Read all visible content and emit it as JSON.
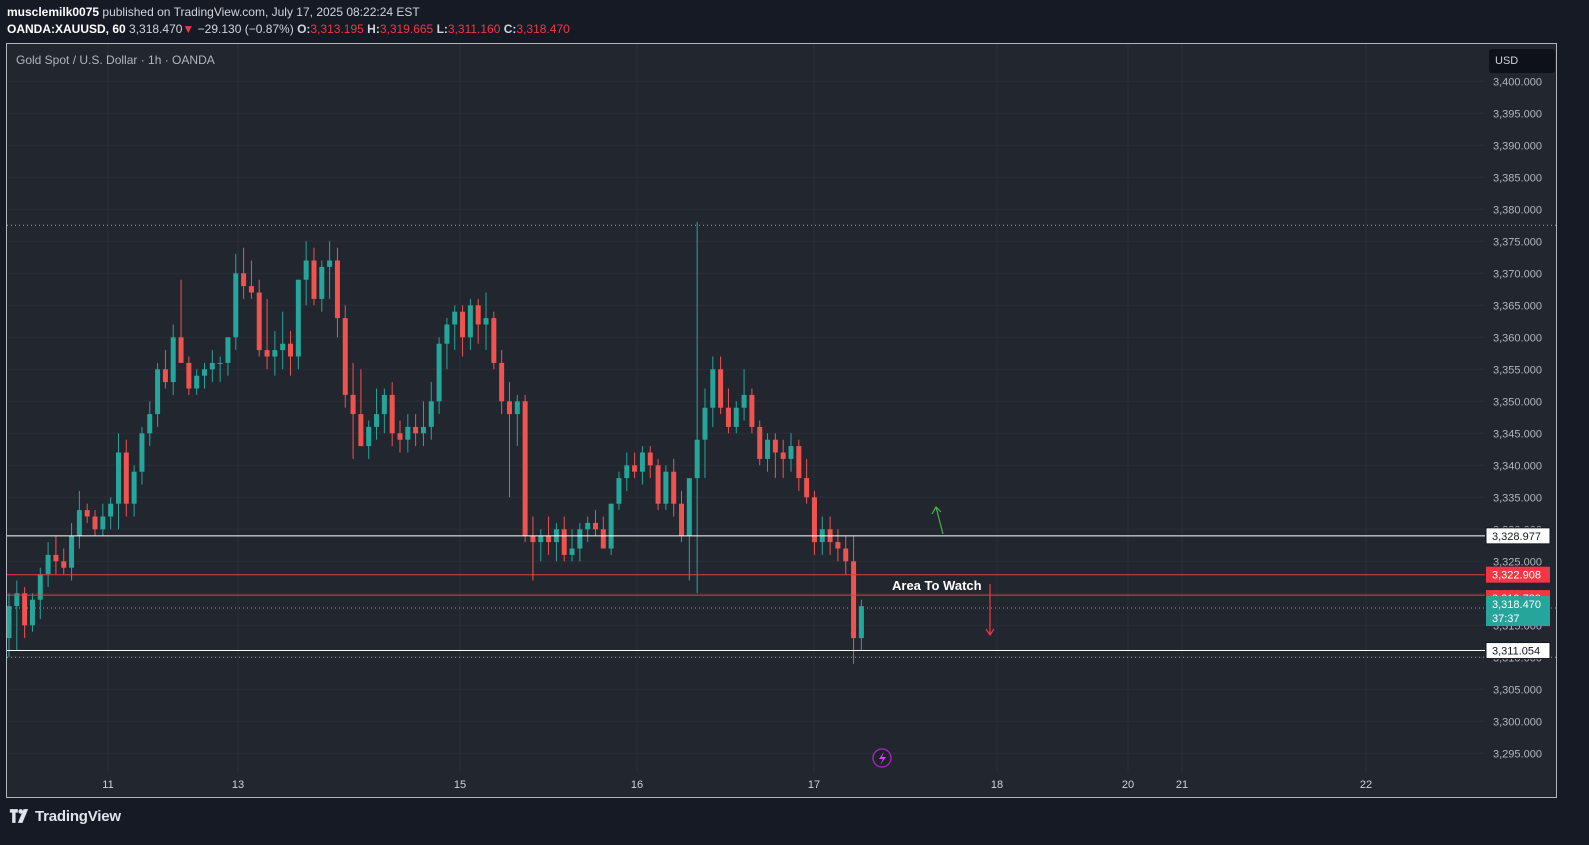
{
  "header": {
    "author": "musclemilk0075",
    "published_text": "published on TradingView.com, July 17, 2025 08:22:24 EST",
    "symbol": "OANDA:XAUUSD, 60",
    "last": "3,318.470",
    "change_arrow": "▼",
    "change": "−29.130 (−0.87%)",
    "open_label": "O:",
    "open": "3,313.195",
    "high_label": "H:",
    "high": "3,319.665",
    "low_label": "L:",
    "low": "3,311.160",
    "close_label": "C:",
    "close": "3,318.470"
  },
  "chart_title": "Gold Spot / U.S. Dollar · 1h · OANDA",
  "currency": "USD",
  "footer": {
    "brand": "TradingView",
    "logo_icon": "tradingview-logo-icon"
  },
  "bolt_icon": "lightning-bolt-icon",
  "colors": {
    "up": "#26a69a",
    "down": "#ef5350",
    "bg": "#22262f",
    "grid": "#2a2e39",
    "red_line": "#f23645",
    "white_line": "#ffffff",
    "green_arrow": "#4caf50"
  },
  "chart_data": {
    "type": "candlestick",
    "symbol": "OANDA:XAUUSD",
    "interval": "1h",
    "ylim": [
      3292,
      3402
    ],
    "y_ticks": [
      3295,
      3300,
      3305,
      3310,
      3315,
      3320,
      3325,
      3330,
      3335,
      3340,
      3345,
      3350,
      3355,
      3360,
      3365,
      3370,
      3375,
      3380,
      3385,
      3390,
      3395,
      3400
    ],
    "y_tick_labels": [
      "3,295.000",
      "3,300.000",
      "3,305.000",
      "3,310.000",
      "3,315.000",
      "3,320.000",
      "3,325.000",
      "3,330.000",
      "3,335.000",
      "3,340.000",
      "3,345.000",
      "3,350.000",
      "3,355.000",
      "3,360.000",
      "3,365.000",
      "3,370.000",
      "3,375.000",
      "3,380.000",
      "3,385.000",
      "3,390.000",
      "3,395.000",
      "3,400.000"
    ],
    "x_labels": [
      "11",
      "13",
      "15",
      "16",
      "17",
      "18",
      "20",
      "21",
      "22"
    ],
    "candles": [
      [
        3313,
        3320,
        3310,
        3318
      ],
      [
        3318,
        3322,
        3311,
        3320
      ],
      [
        3320,
        3321,
        3313,
        3315
      ],
      [
        3315,
        3320,
        3314,
        3319
      ],
      [
        3319,
        3324,
        3316,
        3323
      ],
      [
        3323,
        3328,
        3321,
        3326
      ],
      [
        3326,
        3329,
        3323,
        3325
      ],
      [
        3325,
        3327,
        3323,
        3324
      ],
      [
        3324,
        3331,
        3322,
        3329
      ],
      [
        3329,
        3336,
        3327,
        3333
      ],
      [
        3333,
        3334,
        3331,
        3332
      ],
      [
        3332,
        3333,
        3329,
        3330
      ],
      [
        3330,
        3334,
        3329,
        3332
      ],
      [
        3332,
        3335,
        3330,
        3334
      ],
      [
        3334,
        3345,
        3330,
        3342
      ],
      [
        3342,
        3344,
        3332,
        3334
      ],
      [
        3334,
        3340,
        3332,
        3339
      ],
      [
        3339,
        3346,
        3337,
        3345
      ],
      [
        3345,
        3350,
        3343,
        3348
      ],
      [
        3348,
        3356,
        3346,
        3355
      ],
      [
        3355,
        3358,
        3352,
        3353
      ],
      [
        3353,
        3362,
        3351,
        3360
      ],
      [
        3360,
        3369,
        3357,
        3356
      ],
      [
        3356,
        3357,
        3351,
        3352
      ],
      [
        3352,
        3355,
        3351,
        3354
      ],
      [
        3354,
        3356,
        3352,
        3355
      ],
      [
        3355,
        3358,
        3353,
        3356
      ],
      [
        3356,
        3357,
        3353,
        3356
      ],
      [
        3356,
        3359,
        3354,
        3360
      ],
      [
        3360,
        3373,
        3358,
        3370
      ],
      [
        3370,
        3374,
        3366,
        3368
      ],
      [
        3368,
        3372,
        3366,
        3367
      ],
      [
        3367,
        3369,
        3357,
        3358
      ],
      [
        3358,
        3366,
        3355,
        3357
      ],
      [
        3357,
        3361,
        3354,
        3358
      ],
      [
        3358,
        3364,
        3355,
        3359
      ],
      [
        3359,
        3361,
        3354,
        3357
      ],
      [
        3357,
        3369,
        3355,
        3369
      ],
      [
        3369,
        3375,
        3365,
        3372
      ],
      [
        3372,
        3374,
        3365,
        3366
      ],
      [
        3366,
        3372,
        3364,
        3371
      ],
      [
        3371,
        3375,
        3366,
        3372
      ],
      [
        3372,
        3374,
        3360,
        3363
      ],
      [
        3363,
        3365,
        3349,
        3351
      ],
      [
        3351,
        3356,
        3341,
        3348
      ],
      [
        3348,
        3355,
        3343,
        3343
      ],
      [
        3343,
        3347,
        3341,
        3346
      ],
      [
        3346,
        3352,
        3344,
        3348
      ],
      [
        3348,
        3352,
        3345,
        3351
      ],
      [
        3351,
        3353,
        3343,
        3345
      ],
      [
        3345,
        3347,
        3342,
        3344
      ],
      [
        3344,
        3348,
        3342,
        3346
      ],
      [
        3346,
        3348,
        3343,
        3345
      ],
      [
        3345,
        3350,
        3343,
        3346
      ],
      [
        3346,
        3353,
        3344,
        3350
      ],
      [
        3350,
        3360,
        3348,
        3359
      ],
      [
        3359,
        3363,
        3355,
        3362
      ],
      [
        3362,
        3365,
        3358,
        3364
      ],
      [
        3364,
        3365,
        3357,
        3360
      ],
      [
        3360,
        3366,
        3358,
        3365
      ],
      [
        3365,
        3366,
        3359,
        3362
      ],
      [
        3362,
        3367,
        3358,
        3363
      ],
      [
        3363,
        3364,
        3355,
        3356
      ],
      [
        3356,
        3358,
        3348,
        3350
      ],
      [
        3350,
        3353,
        3335,
        3348
      ],
      [
        3348,
        3351,
        3343,
        3350
      ],
      [
        3350,
        3351,
        3328,
        3329
      ],
      [
        3329,
        3332,
        3322,
        3328
      ],
      [
        3328,
        3330,
        3325,
        3329
      ],
      [
        3329,
        3332,
        3326,
        3328
      ],
      [
        3328,
        3331,
        3325,
        3330
      ],
      [
        3330,
        3332,
        3325,
        3326
      ],
      [
        3326,
        3330,
        3325,
        3327
      ],
      [
        3327,
        3331,
        3325,
        3330
      ],
      [
        3330,
        3332,
        3328,
        3331
      ],
      [
        3331,
        3333,
        3329,
        3330
      ],
      [
        3330,
        3332,
        3327,
        3327
      ],
      [
        3327,
        3334,
        3326,
        3334
      ],
      [
        3334,
        3339,
        3333,
        3338
      ],
      [
        3338,
        3342,
        3336,
        3340
      ],
      [
        3340,
        3342,
        3338,
        3339
      ],
      [
        3339,
        3343,
        3337,
        3342
      ],
      [
        3342,
        3343,
        3338,
        3340
      ],
      [
        3340,
        3341,
        3333,
        3334
      ],
      [
        3334,
        3340,
        3333,
        3339
      ],
      [
        3339,
        3341,
        3332,
        3334
      ],
      [
        3334,
        3336,
        3328,
        3329
      ],
      [
        3329,
        3337,
        3322,
        3338
      ],
      [
        3338,
        3378,
        3320,
        3344
      ],
      [
        3344,
        3352,
        3338,
        3349
      ],
      [
        3349,
        3357,
        3346,
        3355
      ],
      [
        3355,
        3357,
        3348,
        3349
      ],
      [
        3349,
        3352,
        3345,
        3346
      ],
      [
        3346,
        3350,
        3345,
        3349
      ],
      [
        3349,
        3355,
        3347,
        3351
      ],
      [
        3351,
        3352,
        3345,
        3346
      ],
      [
        3346,
        3347,
        3340,
        3341
      ],
      [
        3341,
        3345,
        3339,
        3344
      ],
      [
        3344,
        3345,
        3338,
        3342
      ],
      [
        3342,
        3344,
        3338,
        3341
      ],
      [
        3341,
        3345,
        3339,
        3343
      ],
      [
        3343,
        3344,
        3336,
        3338
      ],
      [
        3338,
        3341,
        3334,
        3335
      ],
      [
        3335,
        3336,
        3326,
        3328
      ],
      [
        3328,
        3332,
        3326,
        3330
      ],
      [
        3330,
        3332,
        3326,
        3328
      ],
      [
        3328,
        3330,
        3325,
        3327
      ],
      [
        3327,
        3329,
        3323,
        3325
      ],
      [
        3325,
        3329,
        3309,
        3313
      ],
      [
        3313,
        3319,
        3311,
        3318
      ]
    ],
    "levels": [
      {
        "value": 3328.977,
        "label": "3,328.977",
        "color": "#ffffff",
        "style": "solid"
      },
      {
        "value": 3322.908,
        "label": "3,322.908",
        "color": "#f23645",
        "style": "solid"
      },
      {
        "value": 3319.723,
        "label": "3,319.723",
        "color": "#f23645",
        "style": "solid"
      },
      {
        "value": 3311.054,
        "label": "3,311.054",
        "color": "#ffffff",
        "style": "solid"
      }
    ],
    "dotted_levels": [
      3377.5,
      3317.7,
      3310.0
    ],
    "last_price": {
      "value": 3318.47,
      "label": "3,318.470",
      "countdown": "37:37",
      "color": "#26a69a"
    },
    "annotation": {
      "text": "Area To Watch"
    },
    "arrows": [
      {
        "direction": "up",
        "color": "#4caf50"
      },
      {
        "direction": "down",
        "color": "#f23645"
      }
    ]
  }
}
